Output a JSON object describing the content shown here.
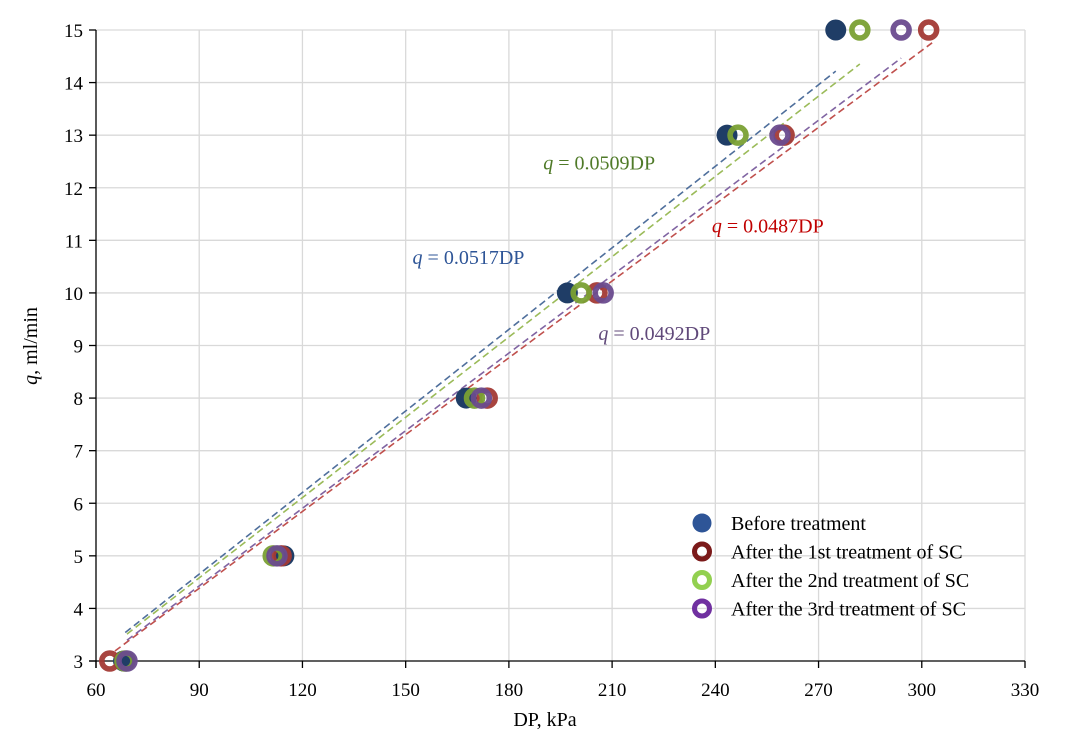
{
  "chart_data": {
    "type": "scatter",
    "title": "",
    "xlabel": "DP, kPa",
    "ylabel_italic": "q",
    "ylabel_rest": ", ml/min",
    "xlim": [
      60,
      330
    ],
    "ylim": [
      3,
      15
    ],
    "xticks": [
      60,
      90,
      120,
      150,
      180,
      210,
      240,
      270,
      300,
      330
    ],
    "yticks": [
      3,
      4,
      5,
      6,
      7,
      8,
      9,
      10,
      11,
      12,
      13,
      14,
      15
    ],
    "grid": true,
    "legend_position": "bottom-right",
    "series": [
      {
        "name": "Before treatment",
        "marker": "filled-circle",
        "color": "#1f3d66",
        "legend_color": "#2e5597",
        "x": [
          68,
          114.6,
          167.6,
          197,
          243.4,
          275
        ],
        "y": [
          3,
          5,
          8,
          10,
          13,
          15
        ],
        "trendline": {
          "equation_italic": "q",
          "equation_rest": " = 0.0517DP",
          "slope": 0.0517,
          "x_range": [
            68.5,
            275
          ],
          "color": "#4f6f9c",
          "label_color": "#2e5597",
          "label_anchor": [
            152,
            10.55
          ]
        }
      },
      {
        "name": "After the 1st treatment of SC",
        "marker": "ring",
        "color": "#a33a35",
        "legend_color": "#7b1a1a",
        "x": [
          64,
          113.8,
          173.7,
          205.6,
          260,
          302
        ],
        "y": [
          3,
          5,
          8,
          10,
          13,
          15
        ],
        "trendline": {
          "equation_italic": "q",
          "equation_rest": " = 0.0487DP",
          "slope": 0.0487,
          "x_range": [
            65.5,
            303
          ],
          "color": "#c0504d",
          "label_color": "#c00000",
          "label_anchor": [
            239,
            11.15
          ]
        }
      },
      {
        "name": "After the 2nd treatment of SC",
        "marker": "ring",
        "color": "#7aa034",
        "legend_color": "#92d050",
        "x": [
          68.4,
          111.5,
          170,
          201,
          246.6,
          282
        ],
        "y": [
          3,
          5,
          8,
          10,
          13,
          15
        ],
        "trendline": {
          "equation_italic": "q",
          "equation_rest": " = 0.0509DP",
          "slope": 0.0509,
          "x_range": [
            69,
            282
          ],
          "color": "#9bbb59",
          "label_color": "#4f7a28",
          "label_anchor": [
            190,
            12.35
          ]
        }
      },
      {
        "name": "After the 3rd treatment of SC",
        "marker": "ring",
        "color": "#6a4b8e",
        "legend_color": "#7030a0",
        "x": [
          69,
          112.6,
          172,
          207.4,
          258.8,
          294
        ],
        "y": [
          3,
          5,
          8,
          10,
          13,
          15
        ],
        "trendline": {
          "equation_italic": "q",
          "equation_rest": " = 0.0492DP",
          "slope": 0.0492,
          "x_range": [
            69,
            294
          ],
          "color": "#8064a2",
          "label_color": "#60497a",
          "label_anchor": [
            206,
            9.1
          ]
        }
      }
    ]
  }
}
